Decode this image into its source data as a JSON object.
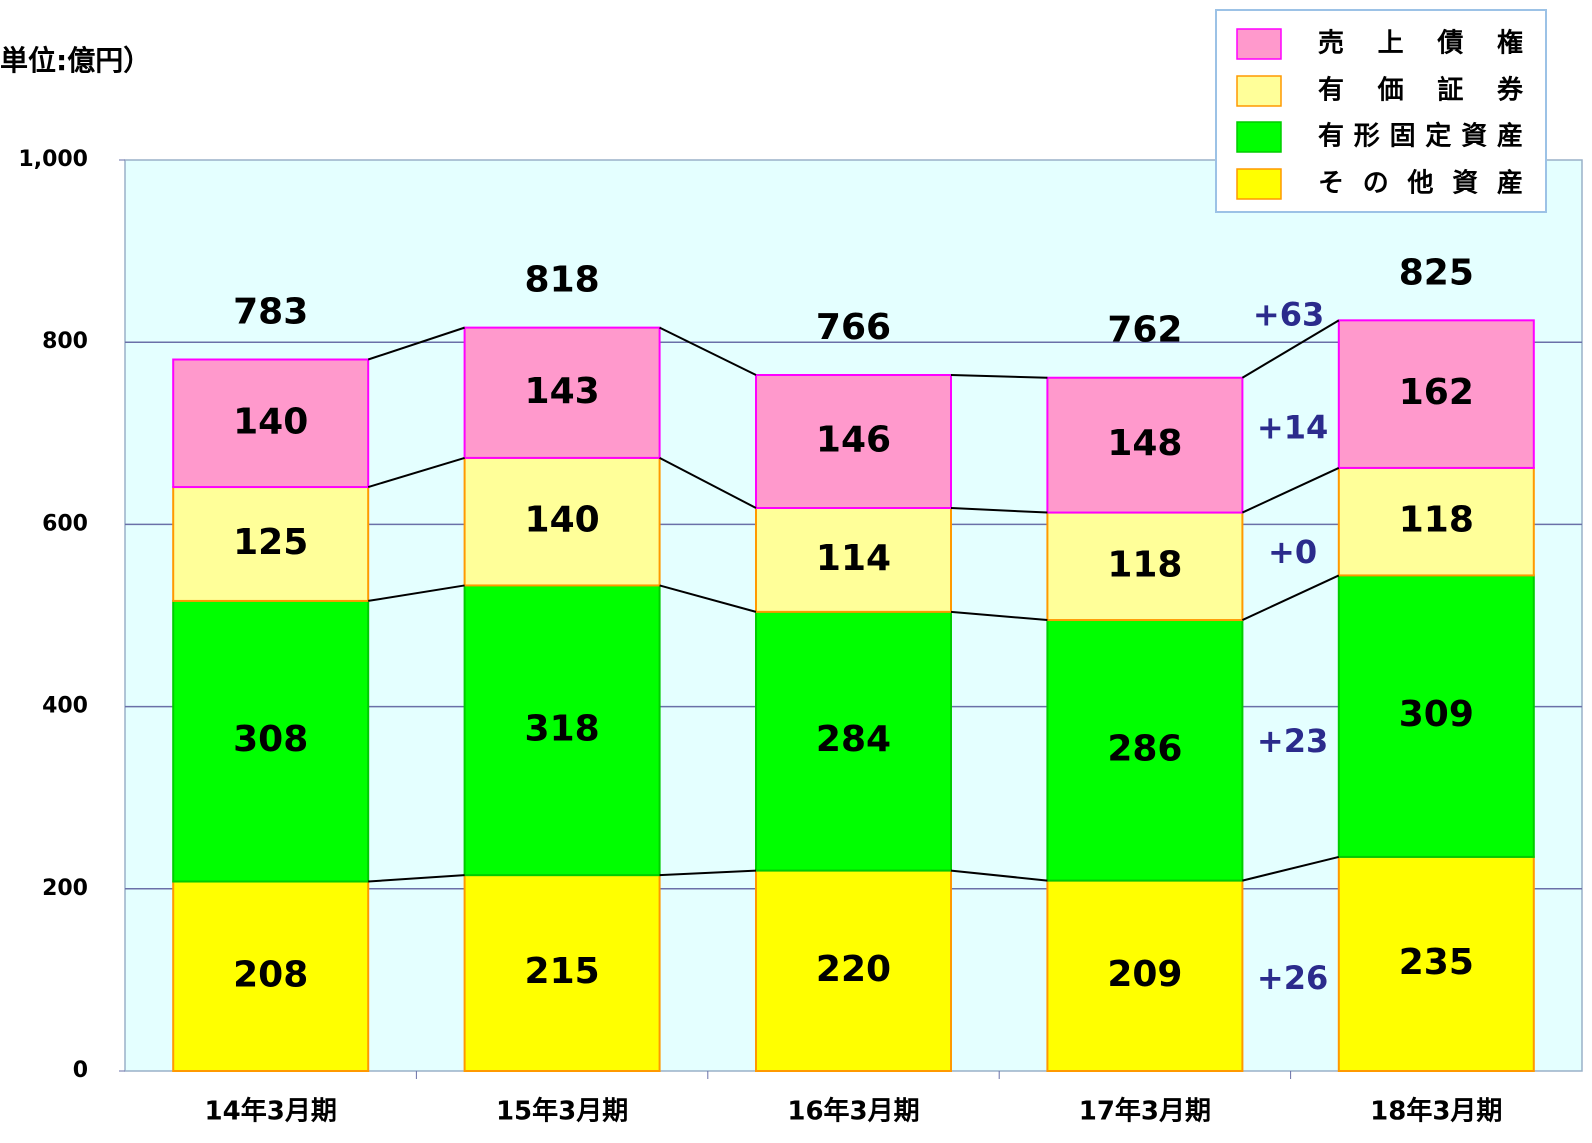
{
  "chart_data": {
    "type": "stacked_bar",
    "unit_label": "単位:億円）",
    "categories": [
      "14年3月期",
      "15年3月期",
      "16年3月期",
      "17年3月期",
      "18年3月期"
    ],
    "series": [
      {
        "name": "その他資産",
        "color": "#ffff00",
        "edgecolor": "#ff9900",
        "values": [
          208,
          215,
          220,
          209,
          235
        ],
        "change": "+26"
      },
      {
        "name": "有形固定資産",
        "color": "#00ff00",
        "edgecolor": "#00cc00",
        "values": [
          308,
          318,
          284,
          286,
          309
        ],
        "change": "+23"
      },
      {
        "name": "有価証券",
        "color": "#ffff99",
        "edgecolor": "#ff9900",
        "values": [
          125,
          140,
          114,
          118,
          118
        ],
        "change": "+0"
      },
      {
        "name": "売上債権",
        "color": "#ff99cc",
        "edgecolor": "#ff00ff",
        "values": [
          140,
          143,
          146,
          148,
          162
        ],
        "change": "+14"
      }
    ],
    "totals": [
      783,
      818,
      766,
      762,
      825
    ],
    "total_change": "+63",
    "ylim": [
      0,
      1000
    ],
    "yticks": [
      0,
      200,
      400,
      600,
      800,
      {
        "value": 1000,
        "label": "1,000"
      }
    ],
    "grid": true,
    "legend": "top-right"
  }
}
